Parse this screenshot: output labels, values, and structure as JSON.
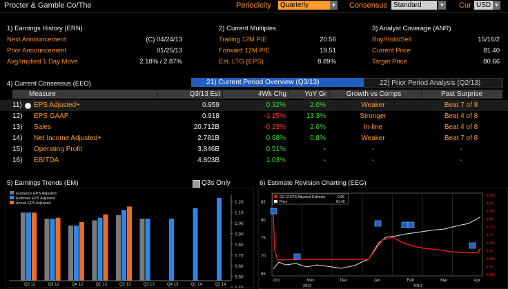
{
  "header": {
    "company": "Procter & Gamble Co/The",
    "periodicity_label": "Periodicity",
    "periodicity_value": "Quarterly",
    "consensus_label": "Consensus",
    "consensus_value": "Standard",
    "cur_label": "Cur",
    "cur_value": "USD"
  },
  "earnings_history": {
    "title": "1) Earnings History (ERN)",
    "rows": [
      {
        "label": "Next Announcement",
        "value": "(C)  04/24/13"
      },
      {
        "label": "Prior Announcement",
        "value": "01/25/13"
      },
      {
        "label": "Avg/Implied 1 Day Move",
        "value": "2.18% / 2.87%"
      }
    ]
  },
  "current_multiples": {
    "title": "2) Current Multiples",
    "rows": [
      {
        "label": "Trailing 12M P/E",
        "value": "20.56"
      },
      {
        "label": "Forward 12M P/E",
        "value": "19.51"
      },
      {
        "label": "Est. LTG (EPS)",
        "value": "8.89%"
      }
    ]
  },
  "analyst_coverage": {
    "title": "3) Analyst Coverage (ANR)",
    "rows": [
      {
        "label": "Buy/Hold/Sell",
        "value": "15/16/2"
      },
      {
        "label": "Current Price",
        "value": "81.40"
      },
      {
        "label": "Target Price",
        "value": "80.66"
      }
    ]
  },
  "consensus": {
    "title": "4) Current Consensus (EEO)",
    "tab_active": "21) Current Period Overview (Q3/13)",
    "tab_inactive": "22) Prior Period Analysis (Q2/13)",
    "headers": [
      "Measure",
      "Q3/13 Est",
      "4Wk Chg",
      "YoY Gr",
      "Growth vs Comps",
      "Past Surprise"
    ],
    "rows": [
      {
        "idx": "11)",
        "measure": "EPS Adjusted+",
        "est": "0.959",
        "chg": "0.32%",
        "chg_color": "green",
        "yoy": "2.0%",
        "yoy_color": "green",
        "growth": "Weaker",
        "surprise": "Beat 7 of 8",
        "selected": true
      },
      {
        "idx": "12)",
        "measure": "EPS GAAP",
        "est": "0.918",
        "chg": "-1.15%",
        "chg_color": "red",
        "yoy": "13.3%",
        "yoy_color": "green",
        "growth": "Stronger",
        "surprise": "Beat 4 of 8"
      },
      {
        "idx": "13)",
        "measure": "Sales",
        "est": "20.712B",
        "chg": "-0.23%",
        "chg_color": "red",
        "yoy": "2.6%",
        "yoy_color": "green",
        "growth": "In-line",
        "surprise": "Beat 4 of 8"
      },
      {
        "idx": "14)",
        "measure": "Net Income Adjusted+",
        "est": "2.781B",
        "chg": "0.68%",
        "chg_color": "green",
        "yoy": "0.8%",
        "yoy_color": "green",
        "growth": "Weaker",
        "surprise": "Beat 7 of 8"
      },
      {
        "idx": "15)",
        "measure": "Operating Profit",
        "est": "3.846B",
        "chg": "0.51%",
        "chg_color": "green",
        "yoy": "-",
        "yoy_color": "white",
        "growth": "-",
        "surprise": "-"
      },
      {
        "idx": "16)",
        "measure": "EBITDA",
        "est": "4.803B",
        "chg": "1.03%",
        "chg_color": "green",
        "yoy": "-",
        "yoy_color": "white",
        "growth": "-",
        "surprise": "-"
      }
    ]
  },
  "trends": {
    "title": "5) Earnings Trends (EM)",
    "checkbox_label": "Q3s Only",
    "legend": [
      "Guidance EPS Adjusted",
      "Estimate EPS Adjusted",
      "Actual EPS Adjusted"
    ],
    "colors": {
      "guidance": "#7a7a7a",
      "estimate": "#2d86e8",
      "actual": "#f06d1e"
    },
    "y_ticks": [
      "1.20",
      "1.10",
      "1.00",
      "0.90",
      "0.80",
      "0.70",
      "0.60",
      "0.50",
      "0.40"
    ],
    "x_labels": [
      "Q2 12",
      "Q3 12",
      "Q4 12",
      "Q1 13",
      "Q2 13",
      "Q3 13",
      "Q4 13",
      "Q1 14",
      "Q2 14"
    ]
  },
  "revision": {
    "title": "6) Estimate Revision Charting (EEG)",
    "legend": [
      {
        "label": "Q3 13 EPS Adjusted Estimate",
        "value": "0.96"
      },
      {
        "label": "Price",
        "value": "81.40"
      }
    ],
    "colors": {
      "estimate": "#e41b1b",
      "price": "#e8e8e8"
    },
    "left_ticks": [
      "85",
      "80",
      "75",
      "70",
      "65"
    ],
    "right_ticks": [
      "0.995",
      "0.99",
      "0.985",
      "0.98",
      "0.975",
      "0.97",
      "0.965",
      "0.96",
      "0.955",
      "0.95",
      "0.945"
    ],
    "x_labels": [
      "Oct",
      "Nov",
      "Dec",
      "Jan",
      "Feb",
      "Mar",
      "Apr"
    ],
    "year_labels": [
      "2012",
      "2013"
    ]
  }
}
